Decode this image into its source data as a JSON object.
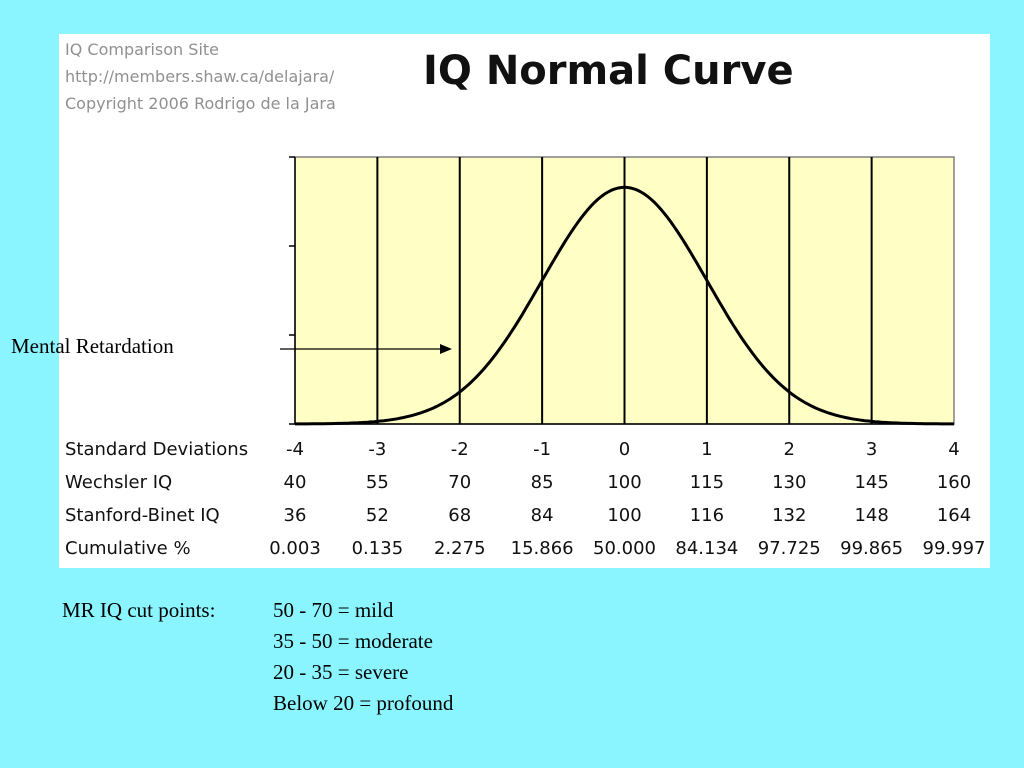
{
  "credits": [
    "IQ Comparison Site",
    "http://members.shaw.ca/delajara/",
    "Copyright 2006 Rodrigo de la Jara"
  ],
  "colors": {
    "background": "#8af5fe",
    "panel": "#ffffff",
    "plot_fill": "#ffffc5",
    "curve": "#000000"
  },
  "annotation": "Mental Retardation",
  "cut_points": {
    "label": "MR IQ cut points:",
    "items": [
      "50 - 70 = mild",
      "35 - 50 = moderate",
      "20 - 35 = severe",
      "Below 20 = profound"
    ]
  },
  "chart_data": {
    "type": "line",
    "title": "IQ Normal Curve",
    "xlabel": "",
    "ylabel": "",
    "xlim": [
      -4,
      4
    ],
    "ylim": [
      0,
      0.45
    ],
    "grid": "vertical lines at each standard deviation",
    "series": [
      {
        "x": [
          -4,
          -3.5,
          -3,
          -2.5,
          -2,
          -1.5,
          -1,
          -0.5,
          0,
          0.5,
          1,
          1.5,
          2,
          2.5,
          3,
          3.5,
          4
        ],
        "values": [
          0.0001,
          0.0009,
          0.0044,
          0.0175,
          0.054,
          0.1295,
          0.242,
          0.3521,
          0.3989,
          0.3521,
          0.242,
          0.1295,
          0.054,
          0.0175,
          0.0044,
          0.0009,
          0.0001
        ]
      }
    ],
    "table": {
      "rows": [
        {
          "label": "Standard Deviations",
          "values": [
            "-4",
            "-3",
            "-2",
            "-1",
            "0",
            "1",
            "2",
            "3",
            "4"
          ]
        },
        {
          "label": "Wechsler IQ",
          "values": [
            "40",
            "55",
            "70",
            "85",
            "100",
            "115",
            "130",
            "145",
            "160"
          ]
        },
        {
          "label": "Stanford-Binet IQ",
          "values": [
            "36",
            "52",
            "68",
            "84",
            "100",
            "116",
            "132",
            "148",
            "164"
          ]
        },
        {
          "label": "Cumulative %",
          "values": [
            "0.003",
            "0.135",
            "2.275",
            "15.866",
            "50.000",
            "84.134",
            "97.725",
            "99.865",
            "99.997"
          ]
        }
      ]
    }
  }
}
